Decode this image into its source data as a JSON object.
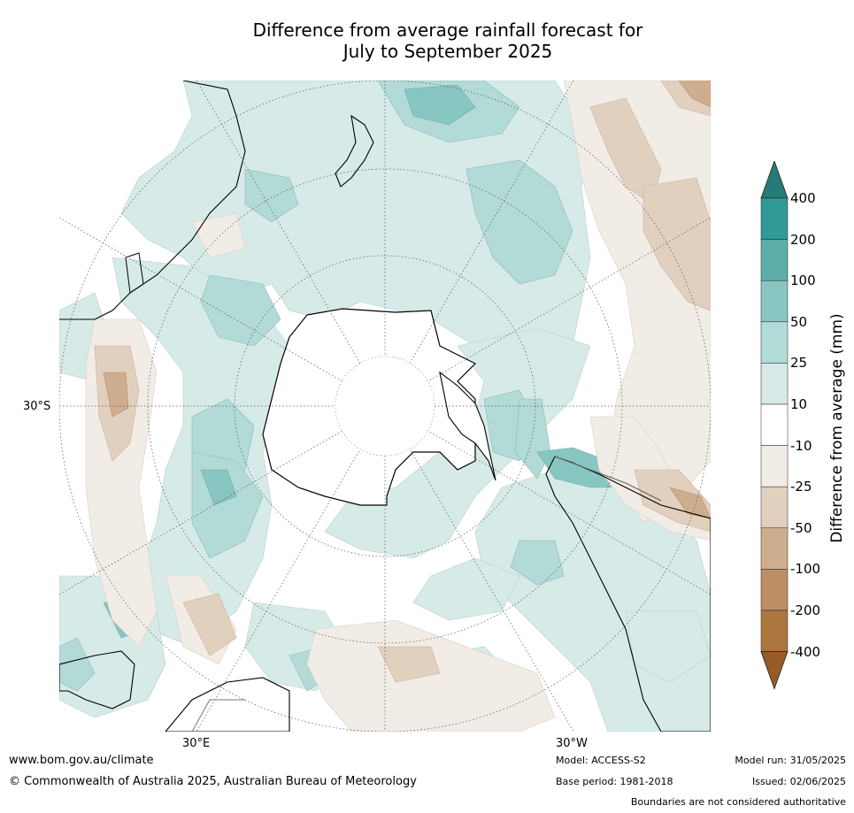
{
  "title_line1": "Difference from average rainfall forecast for",
  "title_line2": "July to September 2025",
  "map_labels": {
    "lat_30s": "30°S",
    "lon_30e": "30°E",
    "lon_30w": "30°W"
  },
  "colorbar": {
    "title": "Difference from average (mm)",
    "ticks": [
      "400",
      "200",
      "100",
      "50",
      "25",
      "10",
      "-10",
      "-25",
      "-50",
      "-100",
      "-200",
      "-400"
    ],
    "colors": [
      "#267b78",
      "#329a96",
      "#5daeaa",
      "#88c6c2",
      "#b2dad7",
      "#d6eae8",
      "#ffffff",
      "#f1ece6",
      "#e2d0be",
      "#cfae8f",
      "#bd8f64",
      "#ad763f",
      "#955c27"
    ]
  },
  "footer": {
    "website": "www.bom.gov.au/climate",
    "copyright": "© Commonwealth of Australia 2025, Australian Bureau of Meteorology",
    "model": "Model: ACCESS-S2",
    "base_period": "Base period: 1981-2018",
    "model_run": "Model run: 31/05/2025",
    "issued": "Issued: 02/06/2025",
    "disclaimer": "Boundaries are not considered authoritative"
  }
}
